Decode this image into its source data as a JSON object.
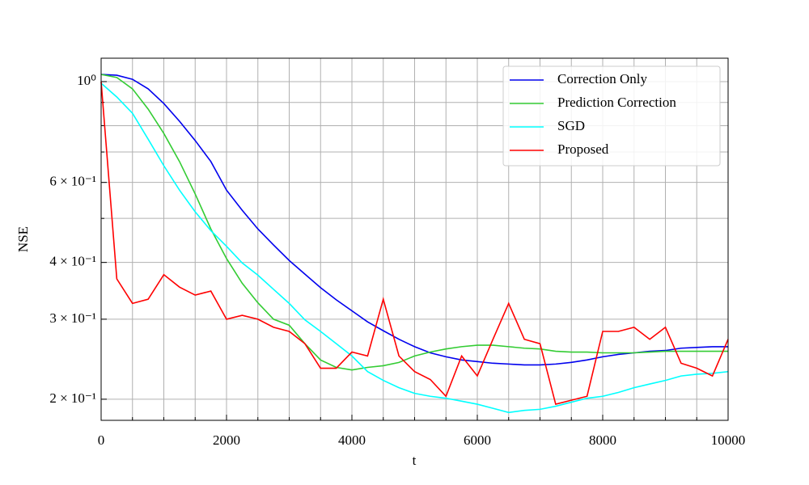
{
  "chart_data": {
    "type": "line",
    "xlabel": "t",
    "ylabel": "NSE",
    "x": [
      0,
      250,
      500,
      750,
      1000,
      1250,
      1500,
      1750,
      2000,
      2250,
      2500,
      2750,
      3000,
      3250,
      3500,
      3750,
      4000,
      4250,
      4500,
      4750,
      5000,
      5250,
      5500,
      5750,
      6000,
      6250,
      6500,
      6750,
      7000,
      7250,
      7500,
      7750,
      8000,
      8250,
      8500,
      8750,
      9000,
      9250,
      9500,
      9750,
      10000
    ],
    "series": [
      {
        "name": "Correction Only",
        "color": "#0000ee",
        "values": [
          1.037,
          1.033,
          1.012,
          0.964,
          0.895,
          0.818,
          0.742,
          0.667,
          0.577,
          0.521,
          0.474,
          0.437,
          0.404,
          0.377,
          0.352,
          0.331,
          0.313,
          0.296,
          0.283,
          0.271,
          0.261,
          0.253,
          0.248,
          0.244,
          0.242,
          0.24,
          0.239,
          0.238,
          0.238,
          0.239,
          0.241,
          0.244,
          0.248,
          0.251,
          0.253,
          0.255,
          0.256,
          0.259,
          0.26,
          0.261,
          0.261
        ]
      },
      {
        "name": "Prediction Correction",
        "color": "#33cc33",
        "values": [
          1.037,
          1.021,
          0.964,
          0.87,
          0.769,
          0.667,
          0.566,
          0.474,
          0.408,
          0.36,
          0.326,
          0.3,
          0.291,
          0.265,
          0.244,
          0.235,
          0.232,
          0.235,
          0.237,
          0.241,
          0.249,
          0.254,
          0.258,
          0.261,
          0.263,
          0.263,
          0.261,
          0.259,
          0.258,
          0.255,
          0.254,
          0.254,
          0.253,
          0.253,
          0.253,
          0.254,
          0.255,
          0.255,
          0.255,
          0.255,
          0.255
        ]
      },
      {
        "name": "SGD",
        "color": "#00ffff",
        "values": [
          0.992,
          0.925,
          0.852,
          0.747,
          0.653,
          0.577,
          0.517,
          0.47,
          0.434,
          0.399,
          0.375,
          0.349,
          0.325,
          0.299,
          0.282,
          0.265,
          0.249,
          0.23,
          0.22,
          0.212,
          0.206,
          0.203,
          0.201,
          0.198,
          0.195,
          0.191,
          0.187,
          0.189,
          0.19,
          0.193,
          0.197,
          0.201,
          0.203,
          0.207,
          0.212,
          0.216,
          0.22,
          0.225,
          0.227,
          0.228,
          0.23
        ]
      },
      {
        "name": "Proposed",
        "color": "#ff0000",
        "values": [
          1.0,
          0.368,
          0.325,
          0.332,
          0.376,
          0.353,
          0.339,
          0.346,
          0.3,
          0.306,
          0.3,
          0.288,
          0.282,
          0.265,
          0.234,
          0.234,
          0.254,
          0.249,
          0.332,
          0.249,
          0.23,
          0.221,
          0.203,
          0.249,
          0.225,
          0.271,
          0.325,
          0.271,
          0.265,
          0.195,
          0.199,
          0.203,
          0.282,
          0.282,
          0.288,
          0.271,
          0.288,
          0.24,
          0.234,
          0.225,
          0.271
        ]
      }
    ],
    "xlim": [
      0,
      10000
    ],
    "xticks": [
      0,
      2000,
      4000,
      6000,
      8000,
      10000
    ],
    "xminorticks": [
      500,
      1000,
      1500,
      2500,
      3000,
      3500,
      4500,
      5000,
      5500,
      6500,
      7000,
      7500,
      8500,
      9000,
      9500
    ],
    "ylim": [
      0.1797,
      1.126
    ],
    "log_y": true,
    "yticks": [
      {
        "value": 1,
        "label": "10⁰"
      },
      {
        "value": 0.6,
        "label": "6 × 10⁻¹"
      },
      {
        "value": 0.4,
        "label": "4 × 10⁻¹"
      },
      {
        "value": 0.3,
        "label": "3 × 10⁻¹"
      },
      {
        "value": 0.2,
        "label": "2 × 10⁻¹"
      }
    ],
    "yminorticks": [
      0.5,
      0.7,
      0.8,
      0.9
    ],
    "grid": true,
    "legend": "upper right"
  }
}
